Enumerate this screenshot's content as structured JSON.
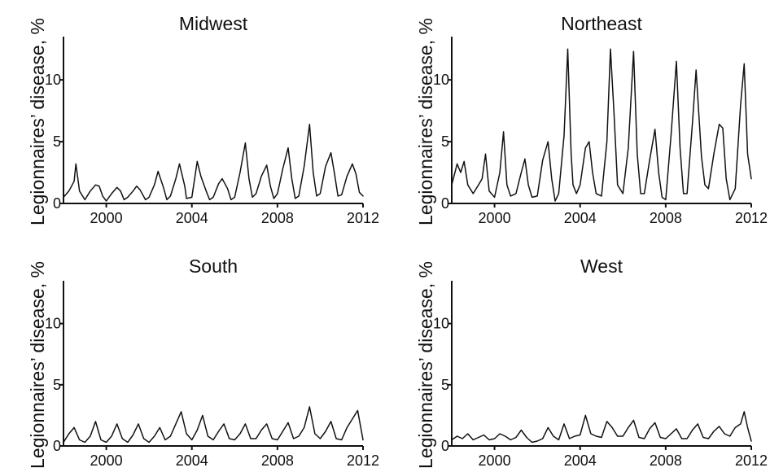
{
  "chart_data": [
    {
      "type": "line",
      "title": "Midwest",
      "xlabel": "",
      "ylabel": "Legionnaires’ disease, %",
      "xlim": [
        1998.0,
        2012.0
      ],
      "ylim": [
        0,
        13.5
      ],
      "xticks": [
        2000,
        2004,
        2008,
        2012
      ],
      "yticks": [
        0,
        5,
        10
      ],
      "xtick_labels": [
        "2000",
        "2004",
        "2008",
        "2012"
      ],
      "ytick_labels": [
        "0",
        "5",
        "10"
      ],
      "grid": false,
      "series": [
        {
          "x": [
            1998.0,
            1998.25,
            1998.5,
            1998.58,
            1998.75,
            1999.0,
            1999.25,
            1999.5,
            1999.67,
            1999.83,
            2000.0,
            2000.25,
            2000.5,
            2000.67,
            2000.83,
            2001.0,
            2001.25,
            2001.42,
            2001.58,
            2001.83,
            2002.0,
            2002.25,
            2002.42,
            2002.67,
            2002.83,
            2003.0,
            2003.25,
            2003.42,
            2003.67,
            2003.75,
            2004.0,
            2004.25,
            2004.42,
            2004.67,
            2004.83,
            2005.0,
            2005.25,
            2005.42,
            2005.67,
            2005.83,
            2006.0,
            2006.25,
            2006.5,
            2006.67,
            2006.83,
            2007.0,
            2007.25,
            2007.5,
            2007.67,
            2007.83,
            2008.0,
            2008.25,
            2008.5,
            2008.67,
            2008.83,
            2009.0,
            2009.25,
            2009.5,
            2009.67,
            2009.83,
            2010.0,
            2010.25,
            2010.5,
            2010.67,
            2010.83,
            2011.0,
            2011.25,
            2011.5,
            2011.67,
            2011.83,
            2012.0
          ],
          "values": [
            0.5,
            1.0,
            1.8,
            3.2,
            1.0,
            0.3,
            1.0,
            1.5,
            1.4,
            0.6,
            0.2,
            0.8,
            1.3,
            1.0,
            0.3,
            0.5,
            1.0,
            1.4,
            1.1,
            0.3,
            0.5,
            1.5,
            2.6,
            1.3,
            0.3,
            0.6,
            2.0,
            3.2,
            1.4,
            0.4,
            0.5,
            3.4,
            2.2,
            1.0,
            0.3,
            0.5,
            1.6,
            2.0,
            1.2,
            0.3,
            0.5,
            2.5,
            4.9,
            2.0,
            0.5,
            0.8,
            2.2,
            3.1,
            1.4,
            0.4,
            0.8,
            2.8,
            4.5,
            2.0,
            0.4,
            0.6,
            3.0,
            6.4,
            2.5,
            0.6,
            0.8,
            3.0,
            4.1,
            2.4,
            0.6,
            0.7,
            2.2,
            3.2,
            2.4,
            0.9,
            0.6
          ]
        }
      ]
    },
    {
      "type": "line",
      "title": "Northeast",
      "xlabel": "",
      "ylabel": "Legionnaires’ disease, %",
      "xlim": [
        1998.0,
        2012.0
      ],
      "ylim": [
        0,
        13.5
      ],
      "xticks": [
        2000,
        2004,
        2008,
        2012
      ],
      "yticks": [
        0,
        5,
        10
      ],
      "xtick_labels": [
        "2000",
        "2004",
        "2008",
        "2012"
      ],
      "ytick_labels": [
        "0",
        "5",
        "10"
      ],
      "grid": false,
      "series": [
        {
          "x": [
            1998.0,
            1998.25,
            1998.42,
            1998.58,
            1998.75,
            1999.0,
            1999.25,
            1999.42,
            1999.58,
            1999.75,
            2000.0,
            2000.25,
            2000.42,
            2000.58,
            2000.75,
            2001.0,
            2001.25,
            2001.42,
            2001.58,
            2001.75,
            2002.0,
            2002.25,
            2002.5,
            2002.67,
            2002.83,
            2003.0,
            2003.25,
            2003.42,
            2003.58,
            2003.67,
            2003.83,
            2004.0,
            2004.25,
            2004.42,
            2004.58,
            2004.75,
            2005.0,
            2005.25,
            2005.42,
            2005.58,
            2005.75,
            2006.0,
            2006.25,
            2006.5,
            2006.67,
            2006.83,
            2007.0,
            2007.25,
            2007.5,
            2007.67,
            2007.83,
            2008.0,
            2008.25,
            2008.5,
            2008.67,
            2008.83,
            2009.0,
            2009.25,
            2009.42,
            2009.67,
            2009.83,
            2010.0,
            2010.25,
            2010.5,
            2010.67,
            2010.83,
            2011.0,
            2011.25,
            2011.5,
            2011.67,
            2011.83,
            2012.0
          ],
          "values": [
            1.5,
            3.2,
            2.5,
            3.4,
            1.5,
            0.8,
            1.5,
            2.0,
            4.0,
            1.0,
            0.5,
            2.5,
            5.8,
            1.5,
            0.6,
            0.8,
            2.5,
            3.6,
            1.5,
            0.5,
            0.6,
            3.5,
            5.0,
            2.0,
            0.2,
            0.8,
            5.5,
            12.5,
            4.0,
            1.5,
            0.8,
            1.5,
            4.5,
            5.0,
            2.5,
            0.8,
            0.6,
            5.0,
            12.5,
            7.5,
            1.5,
            0.8,
            4.5,
            12.3,
            4.0,
            0.8,
            0.8,
            3.5,
            6.0,
            2.5,
            0.5,
            0.3,
            5.5,
            11.5,
            4.5,
            0.8,
            0.8,
            6.5,
            10.8,
            3.8,
            1.5,
            1.2,
            4.0,
            6.4,
            6.1,
            2.0,
            0.3,
            1.2,
            8.0,
            11.3,
            4.0,
            2.0
          ]
        }
      ]
    },
    {
      "type": "line",
      "title": "South",
      "xlabel": "",
      "ylabel": "Legionnaires’ disease, %",
      "xlim": [
        1998.0,
        2012.0
      ],
      "ylim": [
        0,
        13.5
      ],
      "xticks": [
        2000,
        2004,
        2008,
        2012
      ],
      "yticks": [
        0,
        5,
        10
      ],
      "xtick_labels": [
        "2000",
        "2004",
        "2008",
        "2012"
      ],
      "ytick_labels": [
        "0",
        "5",
        "10"
      ],
      "grid": false,
      "series": [
        {
          "x": [
            1998.0,
            1998.25,
            1998.5,
            1998.75,
            1999.0,
            1999.25,
            1999.5,
            1999.75,
            2000.0,
            2000.25,
            2000.5,
            2000.75,
            2001.0,
            2001.25,
            2001.5,
            2001.75,
            2002.0,
            2002.25,
            2002.5,
            2002.75,
            2003.0,
            2003.25,
            2003.5,
            2003.75,
            2004.0,
            2004.25,
            2004.5,
            2004.75,
            2005.0,
            2005.25,
            2005.5,
            2005.75,
            2006.0,
            2006.25,
            2006.5,
            2006.75,
            2007.0,
            2007.25,
            2007.5,
            2007.75,
            2008.0,
            2008.25,
            2008.5,
            2008.75,
            2009.0,
            2009.25,
            2009.5,
            2009.75,
            2010.0,
            2010.25,
            2010.5,
            2010.75,
            2011.0,
            2011.25,
            2011.5,
            2011.75,
            2012.0
          ],
          "values": [
            0.3,
            1.0,
            1.5,
            0.5,
            0.3,
            0.8,
            2.0,
            0.5,
            0.3,
            0.8,
            1.8,
            0.6,
            0.3,
            0.9,
            1.8,
            0.6,
            0.3,
            0.8,
            1.5,
            0.5,
            0.8,
            1.8,
            2.8,
            1.0,
            0.5,
            1.3,
            2.5,
            0.8,
            0.5,
            1.2,
            1.8,
            0.6,
            0.5,
            1.0,
            1.8,
            0.6,
            0.6,
            1.3,
            1.8,
            0.6,
            0.5,
            1.2,
            1.9,
            0.6,
            0.8,
            1.5,
            3.2,
            1.0,
            0.6,
            1.2,
            2.0,
            0.6,
            0.5,
            1.5,
            2.2,
            2.9,
            0.5
          ]
        }
      ]
    },
    {
      "type": "line",
      "title": "West",
      "xlabel": "",
      "ylabel": "Legionnaires’ disease, %",
      "xlim": [
        1998.0,
        2012.0
      ],
      "ylim": [
        0,
        13.5
      ],
      "xticks": [
        2000,
        2004,
        2008,
        2012
      ],
      "yticks": [
        0,
        5,
        10
      ],
      "xtick_labels": [
        "2000",
        "2004",
        "2008",
        "2012"
      ],
      "ytick_labels": [
        "0",
        "5",
        "10"
      ],
      "grid": false,
      "series": [
        {
          "x": [
            1998.0,
            1998.25,
            1998.5,
            1998.75,
            1999.0,
            1999.25,
            1999.5,
            1999.75,
            2000.0,
            2000.25,
            2000.5,
            2000.75,
            2001.0,
            2001.25,
            2001.5,
            2001.75,
            2002.0,
            2002.25,
            2002.5,
            2002.75,
            2003.0,
            2003.25,
            2003.5,
            2003.75,
            2004.0,
            2004.25,
            2004.5,
            2004.75,
            2005.0,
            2005.25,
            2005.5,
            2005.75,
            2006.0,
            2006.25,
            2006.5,
            2006.75,
            2007.0,
            2007.25,
            2007.5,
            2007.75,
            2008.0,
            2008.25,
            2008.5,
            2008.75,
            2009.0,
            2009.25,
            2009.5,
            2009.75,
            2010.0,
            2010.25,
            2010.5,
            2010.75,
            2011.0,
            2011.25,
            2011.5,
            2011.67,
            2011.83,
            2012.0
          ],
          "values": [
            0.5,
            0.8,
            0.6,
            1.0,
            0.5,
            0.7,
            0.9,
            0.5,
            0.6,
            1.0,
            0.8,
            0.5,
            0.7,
            1.3,
            0.7,
            0.3,
            0.4,
            0.6,
            1.5,
            0.8,
            0.5,
            1.8,
            0.6,
            0.8,
            0.9,
            2.5,
            1.0,
            0.8,
            0.7,
            2.0,
            1.5,
            0.8,
            0.8,
            1.5,
            2.1,
            0.7,
            0.6,
            1.4,
            1.9,
            0.7,
            0.6,
            1.0,
            1.4,
            0.6,
            0.6,
            1.3,
            1.8,
            0.7,
            0.6,
            1.2,
            1.6,
            1.0,
            0.8,
            1.5,
            1.8,
            2.8,
            1.5,
            0.4
          ]
        }
      ]
    }
  ]
}
